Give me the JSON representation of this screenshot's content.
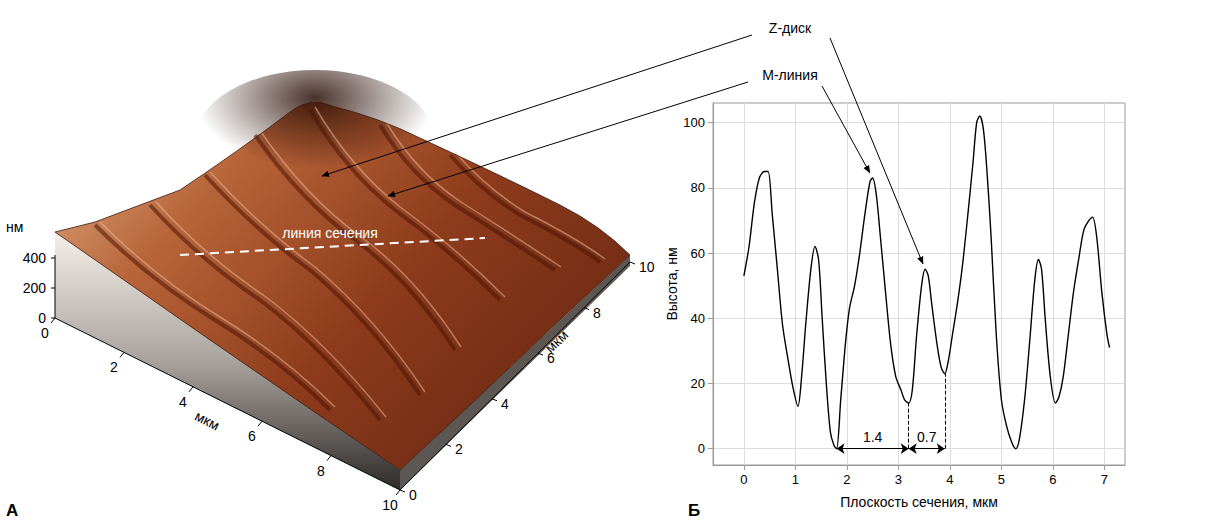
{
  "panels": {
    "a": "А",
    "b": "Б"
  },
  "surface": {
    "z_label": "нм",
    "z_ticks": [
      0,
      200,
      400
    ],
    "x_label": "мкм",
    "x_ticks": [
      0,
      2,
      4,
      6,
      8,
      10
    ],
    "y_label": "мкм",
    "y_ticks": [
      0,
      2,
      4,
      6,
      8,
      10
    ],
    "section_label": "линия сечения"
  },
  "chart_data": {
    "type": "line",
    "x_label": "Плоскость сечения, мкм",
    "y_label": "Высота, нм",
    "x": [
      0,
      0.1,
      0.2,
      0.3,
      0.4,
      0.47,
      0.55,
      0.65,
      0.75,
      0.85,
      0.95,
      1.05,
      1.12,
      1.2,
      1.3,
      1.38,
      1.45,
      1.52,
      1.6,
      1.68,
      1.75,
      1.8,
      1.88,
      1.97,
      2.05,
      2.15,
      2.25,
      2.35,
      2.45,
      2.5,
      2.57,
      2.65,
      2.75,
      2.85,
      2.95,
      3.05,
      3.12,
      3.2,
      3.27,
      3.35,
      3.45,
      3.52,
      3.58,
      3.65,
      3.75,
      3.83,
      3.9,
      3.97,
      4.05,
      4.15,
      4.25,
      4.35,
      4.45,
      4.52,
      4.58,
      4.65,
      4.72,
      4.8,
      4.9,
      5.0,
      5.1,
      5.2,
      5.28,
      5.35,
      5.45,
      5.55,
      5.65,
      5.72,
      5.78,
      5.85,
      5.95,
      6.05,
      6.12,
      6.2,
      6.3,
      6.4,
      6.5,
      6.6,
      6.7,
      6.77,
      6.85,
      6.95,
      7.05,
      7.1
    ],
    "values": [
      53,
      62,
      75,
      83,
      85,
      85,
      72,
      55,
      38,
      28,
      19,
      13,
      22,
      38,
      55,
      62,
      58,
      40,
      20,
      5,
      1,
      0,
      15,
      32,
      43,
      50,
      60,
      72,
      82,
      83,
      78,
      65,
      48,
      32,
      22,
      18,
      15,
      14,
      18,
      34,
      50,
      55,
      53,
      44,
      32,
      25,
      23,
      27,
      35,
      45,
      57,
      72,
      88,
      100,
      102,
      98,
      85,
      65,
      35,
      15,
      7,
      2,
      0,
      3,
      15,
      33,
      52,
      58,
      55,
      40,
      22,
      14,
      16,
      22,
      35,
      48,
      58,
      67,
      70,
      71,
      65,
      48,
      35,
      31
    ],
    "color": "#000000",
    "xlim": [
      -0.6,
      7.4
    ],
    "ylim": [
      -5,
      106
    ],
    "xticks": [
      0,
      1,
      2,
      3,
      4,
      5,
      6,
      7
    ],
    "yticks": [
      0,
      20,
      40,
      60,
      80,
      100
    ],
    "grid": true,
    "spans": [
      {
        "from": 1.8,
        "to": 3.2,
        "label": "1.4"
      },
      {
        "from": 3.2,
        "to": 3.9,
        "label": "0.7"
      }
    ],
    "annotations": [
      {
        "text": "Z-диск",
        "x": 3.52,
        "y": 55
      },
      {
        "text": "М-линия",
        "x": 2.5,
        "y": 83
      }
    ]
  }
}
